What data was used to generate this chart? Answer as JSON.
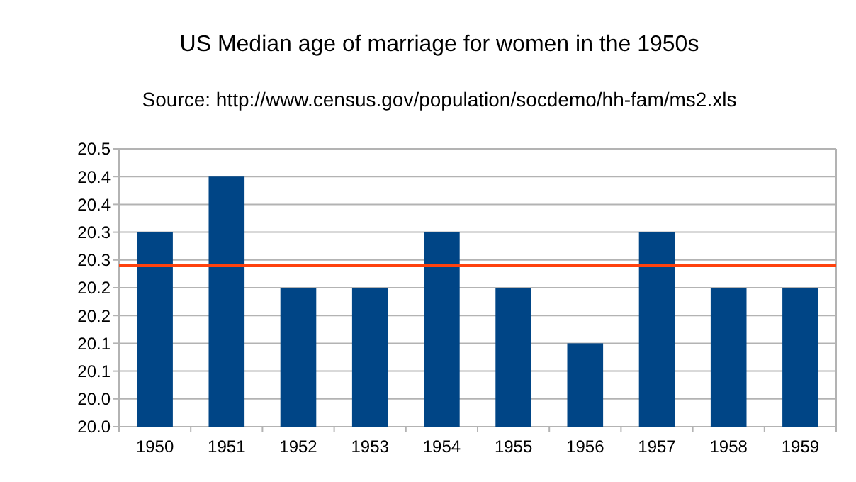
{
  "chart_data": {
    "type": "bar",
    "title": "US Median age of marriage for women in the 1950s",
    "subtitle": "Source:  http://www.census.gov/population/socdemo/hh-fam/ms2.xls",
    "categories": [
      "1950",
      "1951",
      "1952",
      "1953",
      "1954",
      "1955",
      "1956",
      "1957",
      "1958",
      "1959"
    ],
    "values": [
      20.35,
      20.45,
      20.25,
      20.25,
      20.35,
      20.25,
      20.15,
      20.35,
      20.25,
      20.25
    ],
    "color": "#004586",
    "ylim": [
      20.0,
      20.5
    ],
    "yticks": [
      {
        "value": 20.0,
        "label": "20.0"
      },
      {
        "value": 20.05,
        "label": "20.0"
      },
      {
        "value": 20.1,
        "label": "20.1"
      },
      {
        "value": 20.15,
        "label": "20.1"
      },
      {
        "value": 20.2,
        "label": "20.2"
      },
      {
        "value": 20.25,
        "label": "20.2"
      },
      {
        "value": 20.3,
        "label": "20.3"
      },
      {
        "value": 20.35,
        "label": "20.3"
      },
      {
        "value": 20.4,
        "label": "20.4"
      },
      {
        "value": 20.45,
        "label": "20.4"
      },
      {
        "value": 20.5,
        "label": "20.5"
      }
    ],
    "grid": "y",
    "ref_lines": [
      {
        "axis": "y",
        "value": 20.29,
        "color": "#ff420e"
      }
    ]
  }
}
